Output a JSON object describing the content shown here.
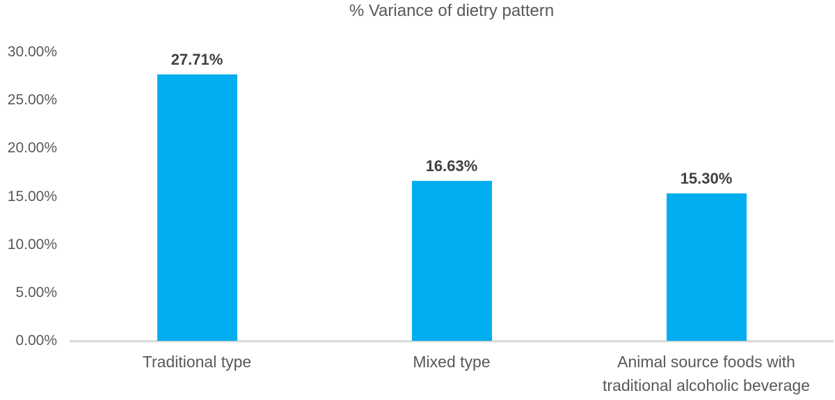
{
  "chart_data": {
    "type": "bar",
    "title": "% Variance of dietry pattern",
    "categories": [
      "Traditional type",
      "Mixed type",
      "Animal source foods with traditional alcoholic beverage"
    ],
    "values": [
      27.71,
      16.63,
      15.3
    ],
    "data_labels": [
      "27.71%",
      "16.63%",
      "15.30%"
    ],
    "y_ticks": [
      "30.00%",
      "25.00%",
      "20.00%",
      "15.00%",
      "10.00%",
      "5.00%",
      "0.00%"
    ],
    "y_tick_values": [
      30,
      25,
      20,
      15,
      10,
      5,
      0
    ],
    "ylim": [
      0,
      30
    ],
    "xlabel": "",
    "ylabel": "",
    "grid": false,
    "legend": "none",
    "bar_color": "#00AEEF",
    "axis_line_color": "#D9D9D9",
    "text_color": "#595959",
    "data_label_color": "#3f3f3f"
  }
}
